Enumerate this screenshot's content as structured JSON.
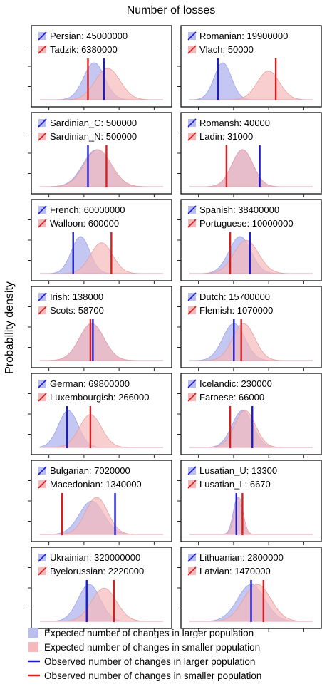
{
  "figure": {
    "title": "Number of losses",
    "ylabel": "Probability density",
    "legend": [
      {
        "kind": "fill-blue",
        "label": "Expected number of changes in larger population"
      },
      {
        "kind": "fill-red",
        "label": "Expected number of changes in smaller population"
      },
      {
        "kind": "line-blue",
        "label": "Observed number of changes in larger population"
      },
      {
        "kind": "line-red",
        "label": "Observed number of changes in smaller population"
      }
    ],
    "colors": {
      "blue_fill": "#b9bdf0",
      "red_fill": "#f6b9bb",
      "blue_line": "#1c1ccf",
      "red_line": "#d81e1e"
    }
  },
  "chart_data": [
    {
      "type": "area",
      "large": {
        "label": "Persian: 45000000",
        "mean": 0.44,
        "sd": 0.085,
        "observed": 0.52
      },
      "small": {
        "label": "Tadzik: 6380000",
        "mean": 0.55,
        "sd": 0.1,
        "observed": 0.39
      }
    },
    {
      "type": "area",
      "large": {
        "label": "Romanian: 19900000",
        "mean": 0.27,
        "sd": 0.07,
        "observed": 0.23
      },
      "small": {
        "label": "Vlach: 50000",
        "mean": 0.64,
        "sd": 0.09,
        "observed": 0.7
      }
    },
    {
      "type": "area",
      "large": {
        "label": "Sardinian_C: 500000",
        "mean": 0.46,
        "sd": 0.11,
        "observed": 0.39
      },
      "small": {
        "label": "Sardinian_N: 500000",
        "mean": 0.47,
        "sd": 0.11,
        "observed": 0.54
      }
    },
    {
      "type": "area",
      "large": {
        "label": "Romansh: 40000",
        "mean": 0.43,
        "sd": 0.085,
        "observed": 0.57
      },
      "small": {
        "label": "Ladin: 31000",
        "mean": 0.43,
        "sd": 0.085,
        "observed": 0.3
      }
    },
    {
      "type": "area",
      "large": {
        "label": "French: 60000000",
        "mean": 0.33,
        "sd": 0.075,
        "observed": 0.27
      },
      "small": {
        "label": "Walloon: 600000",
        "mean": 0.5,
        "sd": 0.09,
        "observed": 0.58
      }
    },
    {
      "type": "area",
      "large": {
        "label": "Spanish: 38400000",
        "mean": 0.41,
        "sd": 0.09,
        "observed": 0.49
      },
      "small": {
        "label": "Portuguese: 10000000",
        "mean": 0.46,
        "sd": 0.1,
        "observed": 0.33
      }
    },
    {
      "type": "area",
      "large": {
        "label": "Irish: 138000",
        "mean": 0.42,
        "sd": 0.1,
        "observed": 0.43
      },
      "small": {
        "label": "Scots: 58700",
        "mean": 0.42,
        "sd": 0.1,
        "observed": 0.41
      }
    },
    {
      "type": "area",
      "large": {
        "label": "Dutch: 15700000",
        "mean": 0.36,
        "sd": 0.09,
        "observed": 0.36
      },
      "small": {
        "label": "Flemish: 1070000",
        "mean": 0.44,
        "sd": 0.09,
        "observed": 0.42
      }
    },
    {
      "type": "area",
      "large": {
        "label": "German: 69800000",
        "mean": 0.23,
        "sd": 0.08,
        "observed": 0.22
      },
      "small": {
        "label": "Luxembourgish: 266000",
        "mean": 0.41,
        "sd": 0.09,
        "observed": 0.41
      }
    },
    {
      "type": "area",
      "large": {
        "label": "Icelandic: 230000",
        "mean": 0.43,
        "sd": 0.085,
        "observed": 0.51
      },
      "small": {
        "label": "Faroese: 66000",
        "mean": 0.45,
        "sd": 0.085,
        "observed": 0.33
      }
    },
    {
      "type": "area",
      "large": {
        "label": "Bulgarian: 7020000",
        "mean": 0.42,
        "sd": 0.1,
        "observed": 0.61
      },
      "small": {
        "label": "Macedonian: 1340000",
        "mean": 0.46,
        "sd": 0.09,
        "observed": 0.18
      }
    },
    {
      "type": "area",
      "large": {
        "label": "Lusatian_U: 13300",
        "mean": 0.39,
        "sd": 0.035,
        "observed": 0.38
      },
      "small": {
        "label": "Lusatian_L: 6670",
        "mean": 0.4,
        "sd": 0.035,
        "observed": 0.43
      }
    },
    {
      "type": "area",
      "large": {
        "label": "Ukrainian: 320000000",
        "mean": 0.4,
        "sd": 0.09,
        "observed": 0.38
      },
      "small": {
        "label": "Byelorussian: 2220000",
        "mean": 0.52,
        "sd": 0.1,
        "observed": 0.6
      }
    },
    {
      "type": "area",
      "large": {
        "label": "Lithuanian: 2800000",
        "mean": 0.5,
        "sd": 0.11,
        "observed": 0.5
      },
      "small": {
        "label": "Latvian: 1470000",
        "mean": 0.55,
        "sd": 0.11,
        "observed": 0.6
      }
    }
  ]
}
